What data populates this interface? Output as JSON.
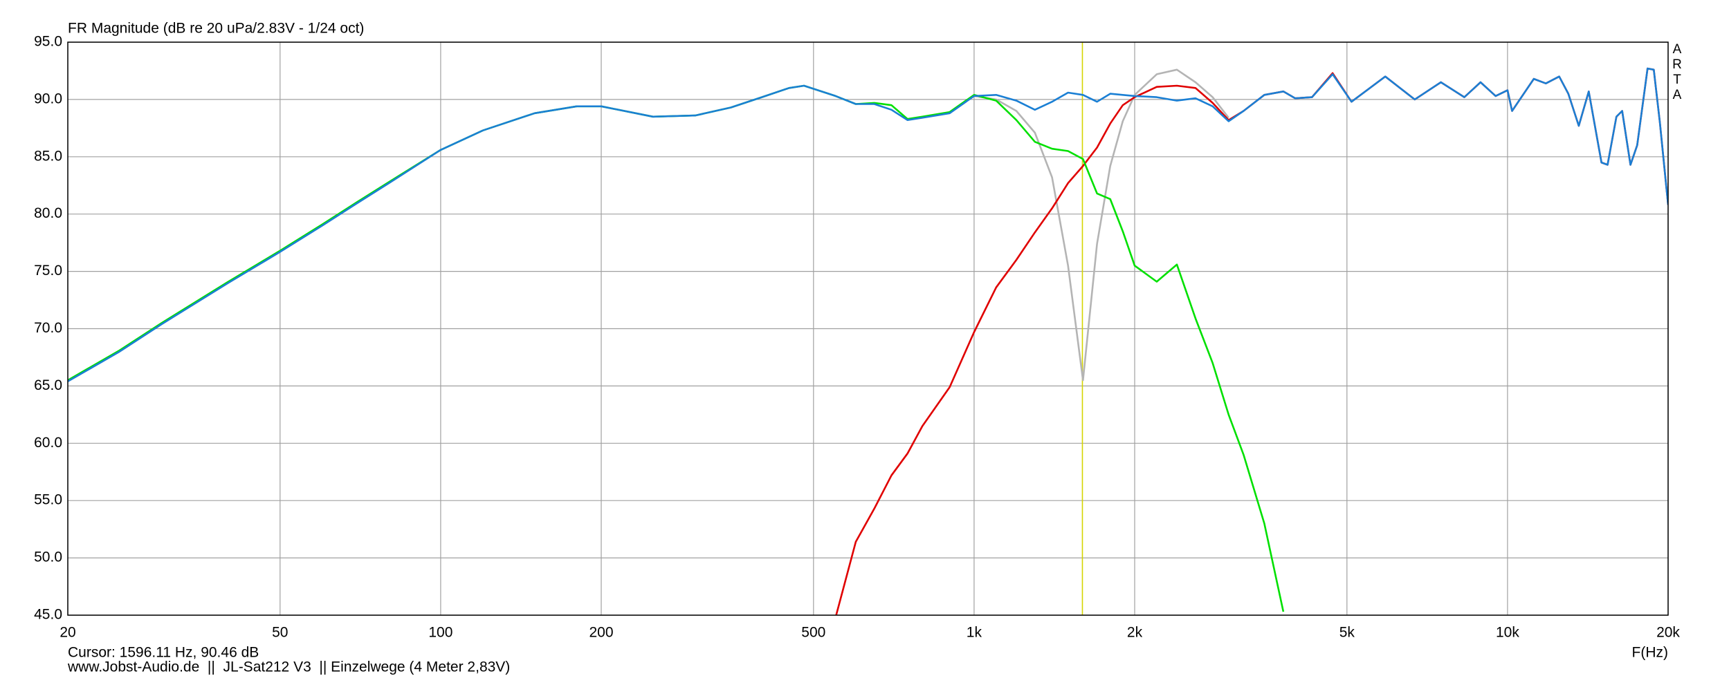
{
  "chart_data": {
    "type": "line",
    "title": "FR Magnitude (dB re 20 uPa/2.83V - 1/24 oct)",
    "x_label": "F(Hz)",
    "watermark": [
      "A",
      "R",
      "T",
      "A"
    ],
    "cursor": {
      "label": "Cursor: 1596.11 Hz, 90.46 dB",
      "x": 1596.11,
      "color": "#d4d400"
    },
    "footer": "www.Jobst-Audio.de  ||  JL-Sat212 V3  || Einzelwege (4 Meter 2,83V)",
    "x_log": true,
    "grid": true,
    "xlim": [
      20,
      20000
    ],
    "ylim": [
      45,
      95
    ],
    "xticks": [
      20,
      50,
      100,
      200,
      500,
      {
        "value": 1000,
        "label": "1k"
      },
      {
        "value": 2000,
        "label": "2k"
      },
      {
        "value": 5000,
        "label": "5k"
      },
      {
        "value": 10000,
        "label": "10k"
      },
      {
        "value": 20000,
        "label": "20k"
      }
    ],
    "yticks": [
      {
        "value": 45,
        "label": "45.0"
      },
      {
        "value": 50,
        "label": "50.0"
      },
      {
        "value": 55,
        "label": "55.0"
      },
      {
        "value": 60,
        "label": "60.0"
      },
      {
        "value": 65,
        "label": "65.0"
      },
      {
        "value": 70,
        "label": "70.0"
      },
      {
        "value": 75,
        "label": "75.0"
      },
      {
        "value": 80,
        "label": "80.0"
      },
      {
        "value": 85,
        "label": "85.0"
      },
      {
        "value": 90,
        "label": "90.0"
      },
      {
        "value": 95,
        "label": "95.0"
      }
    ],
    "x": [
      20,
      25,
      30,
      40,
      50,
      60,
      70,
      80,
      100,
      120,
      150,
      180,
      200,
      250,
      300,
      350,
      400,
      450,
      480,
      550,
      600,
      650,
      700,
      750,
      800,
      900,
      1000,
      1100,
      1200,
      1300,
      1400,
      1500,
      1600,
      1700,
      1800,
      1900,
      2000,
      2200,
      2400,
      2600,
      2800,
      3000,
      3200,
      3500,
      3800,
      4000,
      4300,
      4700,
      5100,
      5900,
      6700,
      7500,
      8300,
      8900,
      9500,
      10000,
      10200,
      11200,
      11800,
      12500,
      13000,
      13600,
      14200,
      15000,
      15400,
      16000,
      16400,
      17000,
      17500,
      18300,
      18800,
      19300,
      20000
    ],
    "series": [
      {
        "color": "#b4b4b4",
        "values": [
          null,
          null,
          null,
          null,
          null,
          null,
          null,
          null,
          null,
          null,
          null,
          null,
          null,
          null,
          null,
          null,
          null,
          null,
          null,
          null,
          null,
          null,
          null,
          null,
          null,
          null,
          90.3,
          90.0,
          89.0,
          87.1,
          83.2,
          75.5,
          65.5,
          77.4,
          84.2,
          88.1,
          90.4,
          92.2,
          92.6,
          91.5,
          90.2,
          88.4,
          null,
          null,
          null,
          null,
          null,
          null,
          null,
          null,
          null,
          null,
          null,
          null,
          null,
          null,
          null,
          null,
          null,
          null,
          null,
          null,
          null,
          null,
          null,
          null,
          null,
          null,
          null,
          null,
          null,
          null,
          null
        ]
      },
      {
        "color": "#e00000",
        "values": [
          null,
          null,
          null,
          null,
          null,
          null,
          null,
          null,
          null,
          null,
          null,
          null,
          null,
          null,
          null,
          null,
          null,
          null,
          null,
          44.8,
          51.4,
          54.3,
          57.2,
          59.1,
          61.5,
          64.9,
          69.7,
          73.6,
          76.0,
          78.4,
          80.5,
          82.7,
          84.2,
          85.8,
          87.9,
          89.5,
          90.2,
          91.1,
          91.2,
          91.0,
          89.7,
          88.2,
          89.0,
          90.4,
          90.7,
          90.1,
          90.2,
          92.3,
          89.8,
          92.0,
          90.0,
          91.5,
          90.2,
          91.5,
          90.3,
          90.8,
          89.0,
          91.8,
          91.4,
          92.0,
          90.5,
          87.7,
          90.7,
          84.5,
          84.3,
          88.5,
          89.0,
          84.3,
          86.0,
          92.7,
          92.6,
          88.0,
          80.8
        ]
      },
      {
        "color": "#00e000",
        "values": [
          65.5,
          68.1,
          70.5,
          74.1,
          76.8,
          79.1,
          81.1,
          82.8,
          85.6,
          87.3,
          88.8,
          89.4,
          89.4,
          88.5,
          88.6,
          89.3,
          90.2,
          91.0,
          91.2,
          90.3,
          89.6,
          89.7,
          89.5,
          88.3,
          88.5,
          88.9,
          90.4,
          89.9,
          88.2,
          86.3,
          85.7,
          85.5,
          84.8,
          81.8,
          81.3,
          78.5,
          75.5,
          74.1,
          75.6,
          70.9,
          67.0,
          62.5,
          59.0,
          53.0,
          45.3,
          null,
          null,
          null,
          null,
          null,
          null,
          null,
          null,
          null,
          null,
          null,
          null,
          null,
          null,
          null,
          null,
          null,
          null,
          null,
          null,
          null,
          null,
          null,
          null,
          null,
          null,
          null,
          null
        ]
      },
      {
        "color": "#1a7fd4",
        "values": [
          65.4,
          68.0,
          70.4,
          74.0,
          76.7,
          79.0,
          81.0,
          82.7,
          85.6,
          87.3,
          88.8,
          89.4,
          89.4,
          88.5,
          88.6,
          89.3,
          90.2,
          91.0,
          91.2,
          90.3,
          89.6,
          89.6,
          89.1,
          88.2,
          88.4,
          88.8,
          90.3,
          90.4,
          89.9,
          89.1,
          89.8,
          90.6,
          90.4,
          89.8,
          90.5,
          90.4,
          90.3,
          90.2,
          89.9,
          90.1,
          89.4,
          88.1,
          89.0,
          90.4,
          90.7,
          90.1,
          90.2,
          92.2,
          89.8,
          92.0,
          90.0,
          91.5,
          90.2,
          91.5,
          90.3,
          90.8,
          89.0,
          91.8,
          91.4,
          92.0,
          90.5,
          87.7,
          90.7,
          84.5,
          84.3,
          88.5,
          89.0,
          84.3,
          86.0,
          92.7,
          92.6,
          88.0,
          80.8
        ]
      }
    ]
  }
}
